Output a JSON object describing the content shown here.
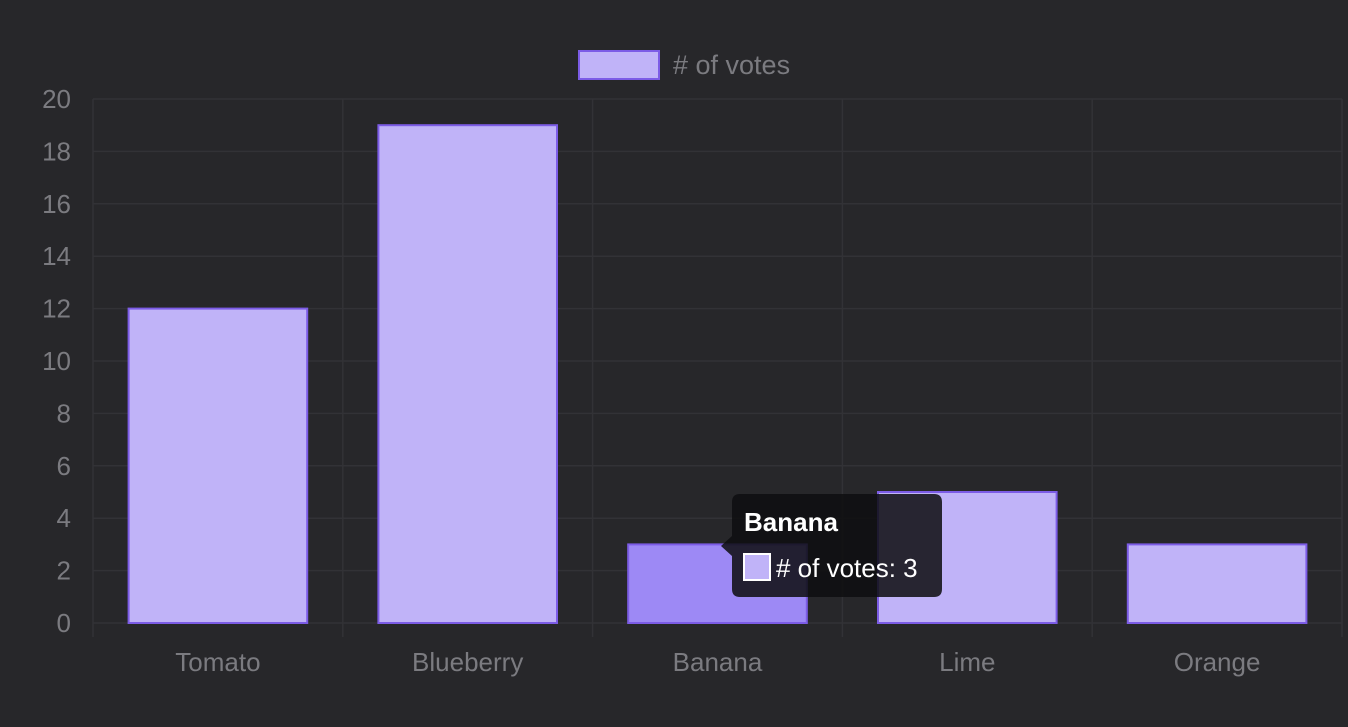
{
  "chart_data": {
    "type": "bar",
    "categories": [
      "Tomato",
      "Blueberry",
      "Banana",
      "Lime",
      "Orange"
    ],
    "series": [
      {
        "name": "# of votes",
        "values": [
          12,
          19,
          3,
          5,
          3
        ]
      }
    ],
    "ylim": [
      0,
      20
    ],
    "y_ticks": [
      0,
      2,
      4,
      6,
      8,
      10,
      12,
      14,
      16,
      18,
      20
    ],
    "grid": true,
    "legend_position": "top-center",
    "hovered_index": 2,
    "tooltip": {
      "title": "Banana",
      "label": "# of votes: 3"
    },
    "colors": {
      "background": "#27272a",
      "bar_fill": "#c0b3f8",
      "bar_fill_hover": "#9d89f5",
      "bar_border": "#7c5ce6",
      "grid": "#323236",
      "tick_text": "#7b7b80",
      "legend_text": "#7b7b80",
      "tooltip_bg": "#0e0e10",
      "tooltip_text": "#ffffff"
    }
  }
}
